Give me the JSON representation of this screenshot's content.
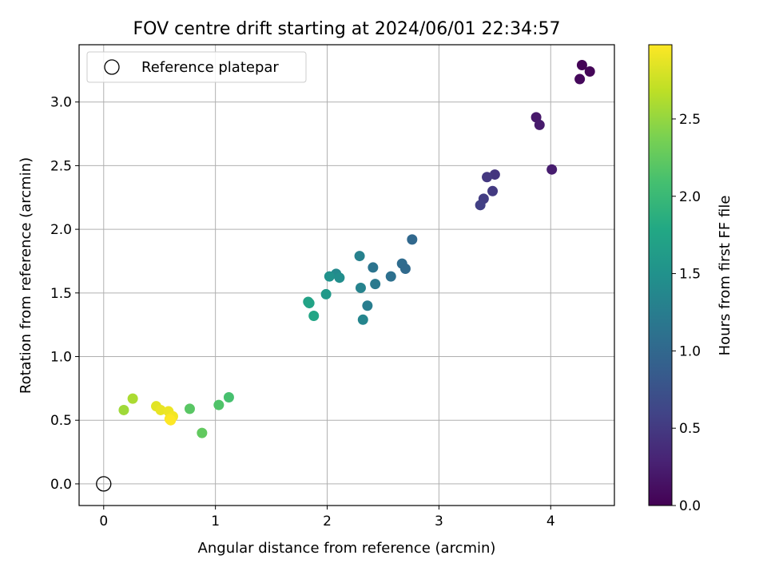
{
  "chart_data": {
    "type": "scatter",
    "title": "FOV centre drift starting at 2024/06/01 22:34:57",
    "xlabel": "Angular distance from reference (arcmin)",
    "ylabel": "Rotation from reference (arcmin)",
    "xlim": [
      -0.22,
      4.57
    ],
    "ylim": [
      -0.17,
      3.45
    ],
    "xticks": [
      0,
      1,
      2,
      3,
      4
    ],
    "xtick_labels": [
      "0",
      "1",
      "2",
      "3",
      "4"
    ],
    "yticks": [
      0.0,
      0.5,
      1.0,
      1.5,
      2.0,
      2.5,
      3.0
    ],
    "ytick_labels": [
      "0.0",
      "0.5",
      "1.0",
      "1.5",
      "2.0",
      "2.5",
      "3.0"
    ],
    "grid": true,
    "legend": {
      "placement": "top-left",
      "entries": [
        {
          "label": "Reference platepar",
          "marker": "open-circle",
          "x": 0,
          "y": 0
        }
      ]
    },
    "colorbar": {
      "label": "Hours from first FF file",
      "colormap": "viridis",
      "range": [
        0.0,
        2.98
      ],
      "ticks": [
        0.0,
        0.5,
        1.0,
        1.5,
        2.0,
        2.5
      ],
      "tick_labels": [
        "0.0",
        "0.5",
        "1.0",
        "1.5",
        "2.0",
        "2.5"
      ]
    },
    "series": [
      {
        "points": [
          {
            "x": 4.28,
            "y": 3.29,
            "c": 0.02
          },
          {
            "x": 4.35,
            "y": 3.24,
            "c": 0.04
          },
          {
            "x": 4.26,
            "y": 3.18,
            "c": 0.06
          },
          {
            "x": 3.87,
            "y": 2.88,
            "c": 0.2
          },
          {
            "x": 3.9,
            "y": 2.82,
            "c": 0.22
          },
          {
            "x": 4.01,
            "y": 2.47,
            "c": 0.24
          },
          {
            "x": 3.5,
            "y": 2.43,
            "c": 0.45
          },
          {
            "x": 3.43,
            "y": 2.41,
            "c": 0.48
          },
          {
            "x": 3.48,
            "y": 2.3,
            "c": 0.5
          },
          {
            "x": 3.4,
            "y": 2.24,
            "c": 0.53
          },
          {
            "x": 3.37,
            "y": 2.19,
            "c": 0.56
          },
          {
            "x": 2.76,
            "y": 1.92,
            "c": 1.0
          },
          {
            "x": 2.67,
            "y": 1.73,
            "c": 1.05
          },
          {
            "x": 2.7,
            "y": 1.69,
            "c": 1.02
          },
          {
            "x": 2.57,
            "y": 1.63,
            "c": 1.1
          },
          {
            "x": 2.41,
            "y": 1.7,
            "c": 1.15
          },
          {
            "x": 2.43,
            "y": 1.57,
            "c": 1.2
          },
          {
            "x": 2.29,
            "y": 1.79,
            "c": 1.3
          },
          {
            "x": 2.3,
            "y": 1.54,
            "c": 1.32
          },
          {
            "x": 2.36,
            "y": 1.4,
            "c": 1.25
          },
          {
            "x": 2.32,
            "y": 1.29,
            "c": 1.35
          },
          {
            "x": 2.08,
            "y": 1.65,
            "c": 1.4
          },
          {
            "x": 2.11,
            "y": 1.62,
            "c": 1.45
          },
          {
            "x": 2.02,
            "y": 1.63,
            "c": 1.5
          },
          {
            "x": 1.99,
            "y": 1.49,
            "c": 1.6
          },
          {
            "x": 1.83,
            "y": 1.43,
            "c": 1.7
          },
          {
            "x": 1.84,
            "y": 1.42,
            "c": 1.72
          },
          {
            "x": 1.88,
            "y": 1.32,
            "c": 1.75
          },
          {
            "x": 1.12,
            "y": 0.68,
            "c": 2.1
          },
          {
            "x": 1.03,
            "y": 0.62,
            "c": 2.15
          },
          {
            "x": 0.77,
            "y": 0.59,
            "c": 2.2
          },
          {
            "x": 0.88,
            "y": 0.4,
            "c": 2.25
          },
          {
            "x": 0.26,
            "y": 0.67,
            "c": 2.6
          },
          {
            "x": 0.18,
            "y": 0.58,
            "c": 2.55
          },
          {
            "x": 0.47,
            "y": 0.61,
            "c": 2.85
          },
          {
            "x": 0.51,
            "y": 0.58,
            "c": 2.88
          },
          {
            "x": 0.58,
            "y": 0.57,
            "c": 2.9
          },
          {
            "x": 0.62,
            "y": 0.53,
            "c": 2.93
          },
          {
            "x": 0.59,
            "y": 0.51,
            "c": 2.96
          },
          {
            "x": 0.6,
            "y": 0.5,
            "c": 2.98
          }
        ]
      }
    ]
  }
}
